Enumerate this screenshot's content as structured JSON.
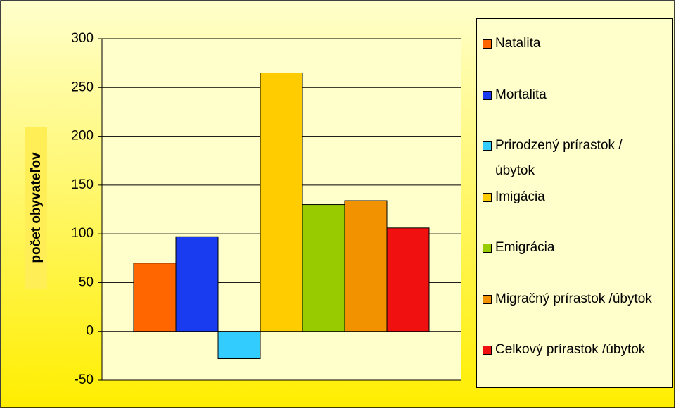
{
  "chart_data": {
    "type": "bar",
    "y_label": "počet obyvateľov",
    "categories": [
      "Natalita",
      "Mortalita",
      "Prirodzený prírastok / úbytok",
      "Imigácia",
      "Emigrácia",
      "Migračný prírastok /úbytok",
      "Celkový prírastok /úbytok"
    ],
    "values": [
      70,
      97,
      -28,
      265,
      130,
      134,
      106
    ],
    "colors": [
      "#ff6600",
      "#1a3cf0",
      "#33ccff",
      "#ffcc00",
      "#99cc00",
      "#f39200",
      "#f01010"
    ],
    "ylim": [
      -50,
      300
    ],
    "yticks": [
      -50,
      0,
      50,
      100,
      150,
      200,
      250,
      300
    ],
    "grid": true,
    "legend": "right"
  }
}
